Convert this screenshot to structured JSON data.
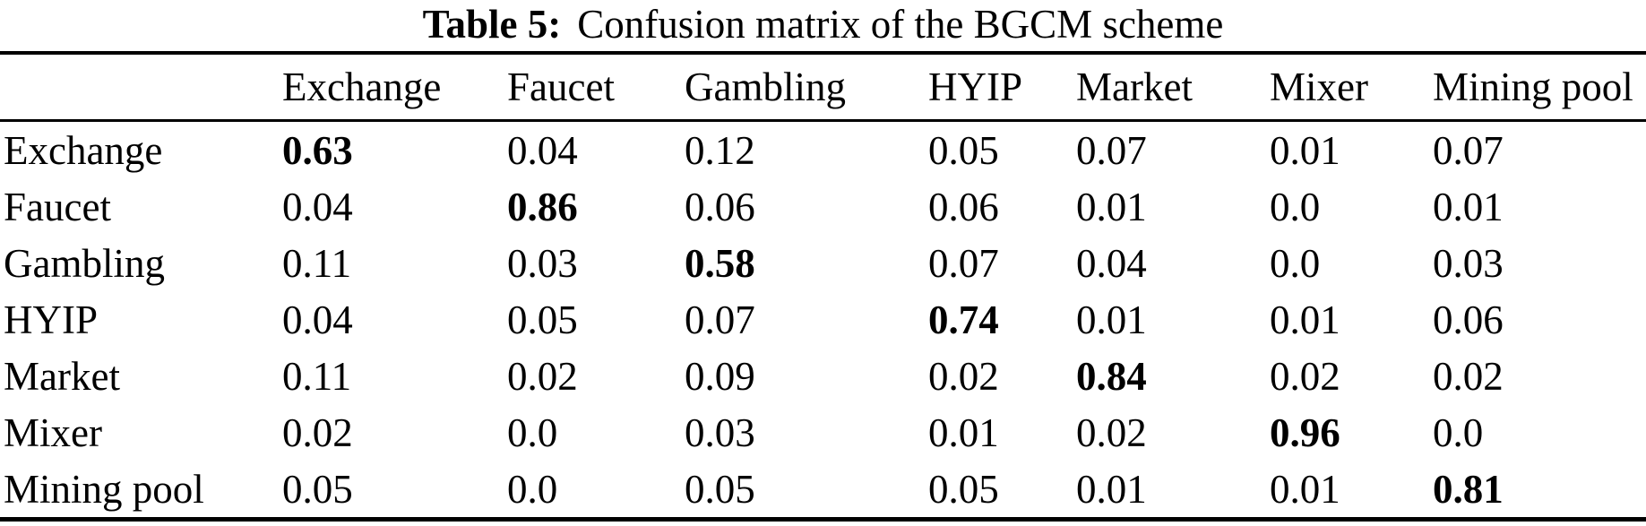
{
  "title": {
    "label": "Table 5:",
    "text": "Confusion matrix of the BGCM scheme"
  },
  "table": {
    "columns": [
      "",
      "Exchange",
      "Faucet",
      "Gambling",
      "HYIP",
      "Market",
      "Mixer",
      "Mining pool"
    ],
    "rows": [
      {
        "label": "Exchange",
        "values": [
          "0.63",
          "0.04",
          "0.12",
          "0.05",
          "0.07",
          "0.01",
          "0.07"
        ],
        "bold_index": 0
      },
      {
        "label": "Faucet",
        "values": [
          "0.04",
          "0.86",
          "0.06",
          "0.06",
          "0.01",
          "0.0",
          "0.01"
        ],
        "bold_index": 1
      },
      {
        "label": "Gambling",
        "values": [
          "0.11",
          "0.03",
          "0.58",
          "0.07",
          "0.04",
          "0.0",
          "0.03"
        ],
        "bold_index": 2
      },
      {
        "label": "HYIP",
        "values": [
          "0.04",
          "0.05",
          "0.07",
          "0.74",
          "0.01",
          "0.01",
          "0.06"
        ],
        "bold_index": 3
      },
      {
        "label": "Market",
        "values": [
          "0.11",
          "0.02",
          "0.09",
          "0.02",
          "0.84",
          "0.02",
          "0.02"
        ],
        "bold_index": 4
      },
      {
        "label": "Mixer",
        "values": [
          "0.02",
          "0.0",
          "0.03",
          "0.01",
          "0.02",
          "0.96",
          "0.0"
        ],
        "bold_index": 5
      },
      {
        "label": "Mining pool",
        "values": [
          "0.05",
          "0.0",
          "0.05",
          "0.05",
          "0.01",
          "0.01",
          "0.81"
        ],
        "bold_index": 6
      }
    ]
  },
  "chart_data": {
    "type": "table",
    "title": "Table 5: Confusion matrix of the BGCM scheme",
    "columns": [
      "Exchange",
      "Faucet",
      "Gambling",
      "HYIP",
      "Market",
      "Mixer",
      "Mining pool"
    ],
    "row_labels": [
      "Exchange",
      "Faucet",
      "Gambling",
      "HYIP",
      "Market",
      "Mixer",
      "Mining pool"
    ],
    "values": [
      [
        0.63,
        0.04,
        0.12,
        0.05,
        0.07,
        0.01,
        0.07
      ],
      [
        0.04,
        0.86,
        0.06,
        0.06,
        0.01,
        0.0,
        0.01
      ],
      [
        0.11,
        0.03,
        0.58,
        0.07,
        0.04,
        0.0,
        0.03
      ],
      [
        0.04,
        0.05,
        0.07,
        0.74,
        0.01,
        0.01,
        0.06
      ],
      [
        0.11,
        0.02,
        0.09,
        0.02,
        0.84,
        0.02,
        0.02
      ],
      [
        0.02,
        0.0,
        0.03,
        0.01,
        0.02,
        0.96,
        0.0
      ],
      [
        0.05,
        0.0,
        0.05,
        0.05,
        0.01,
        0.01,
        0.81
      ]
    ],
    "bold_diagonal": true,
    "text_color": "#000000",
    "background_color": "#ffffff"
  }
}
